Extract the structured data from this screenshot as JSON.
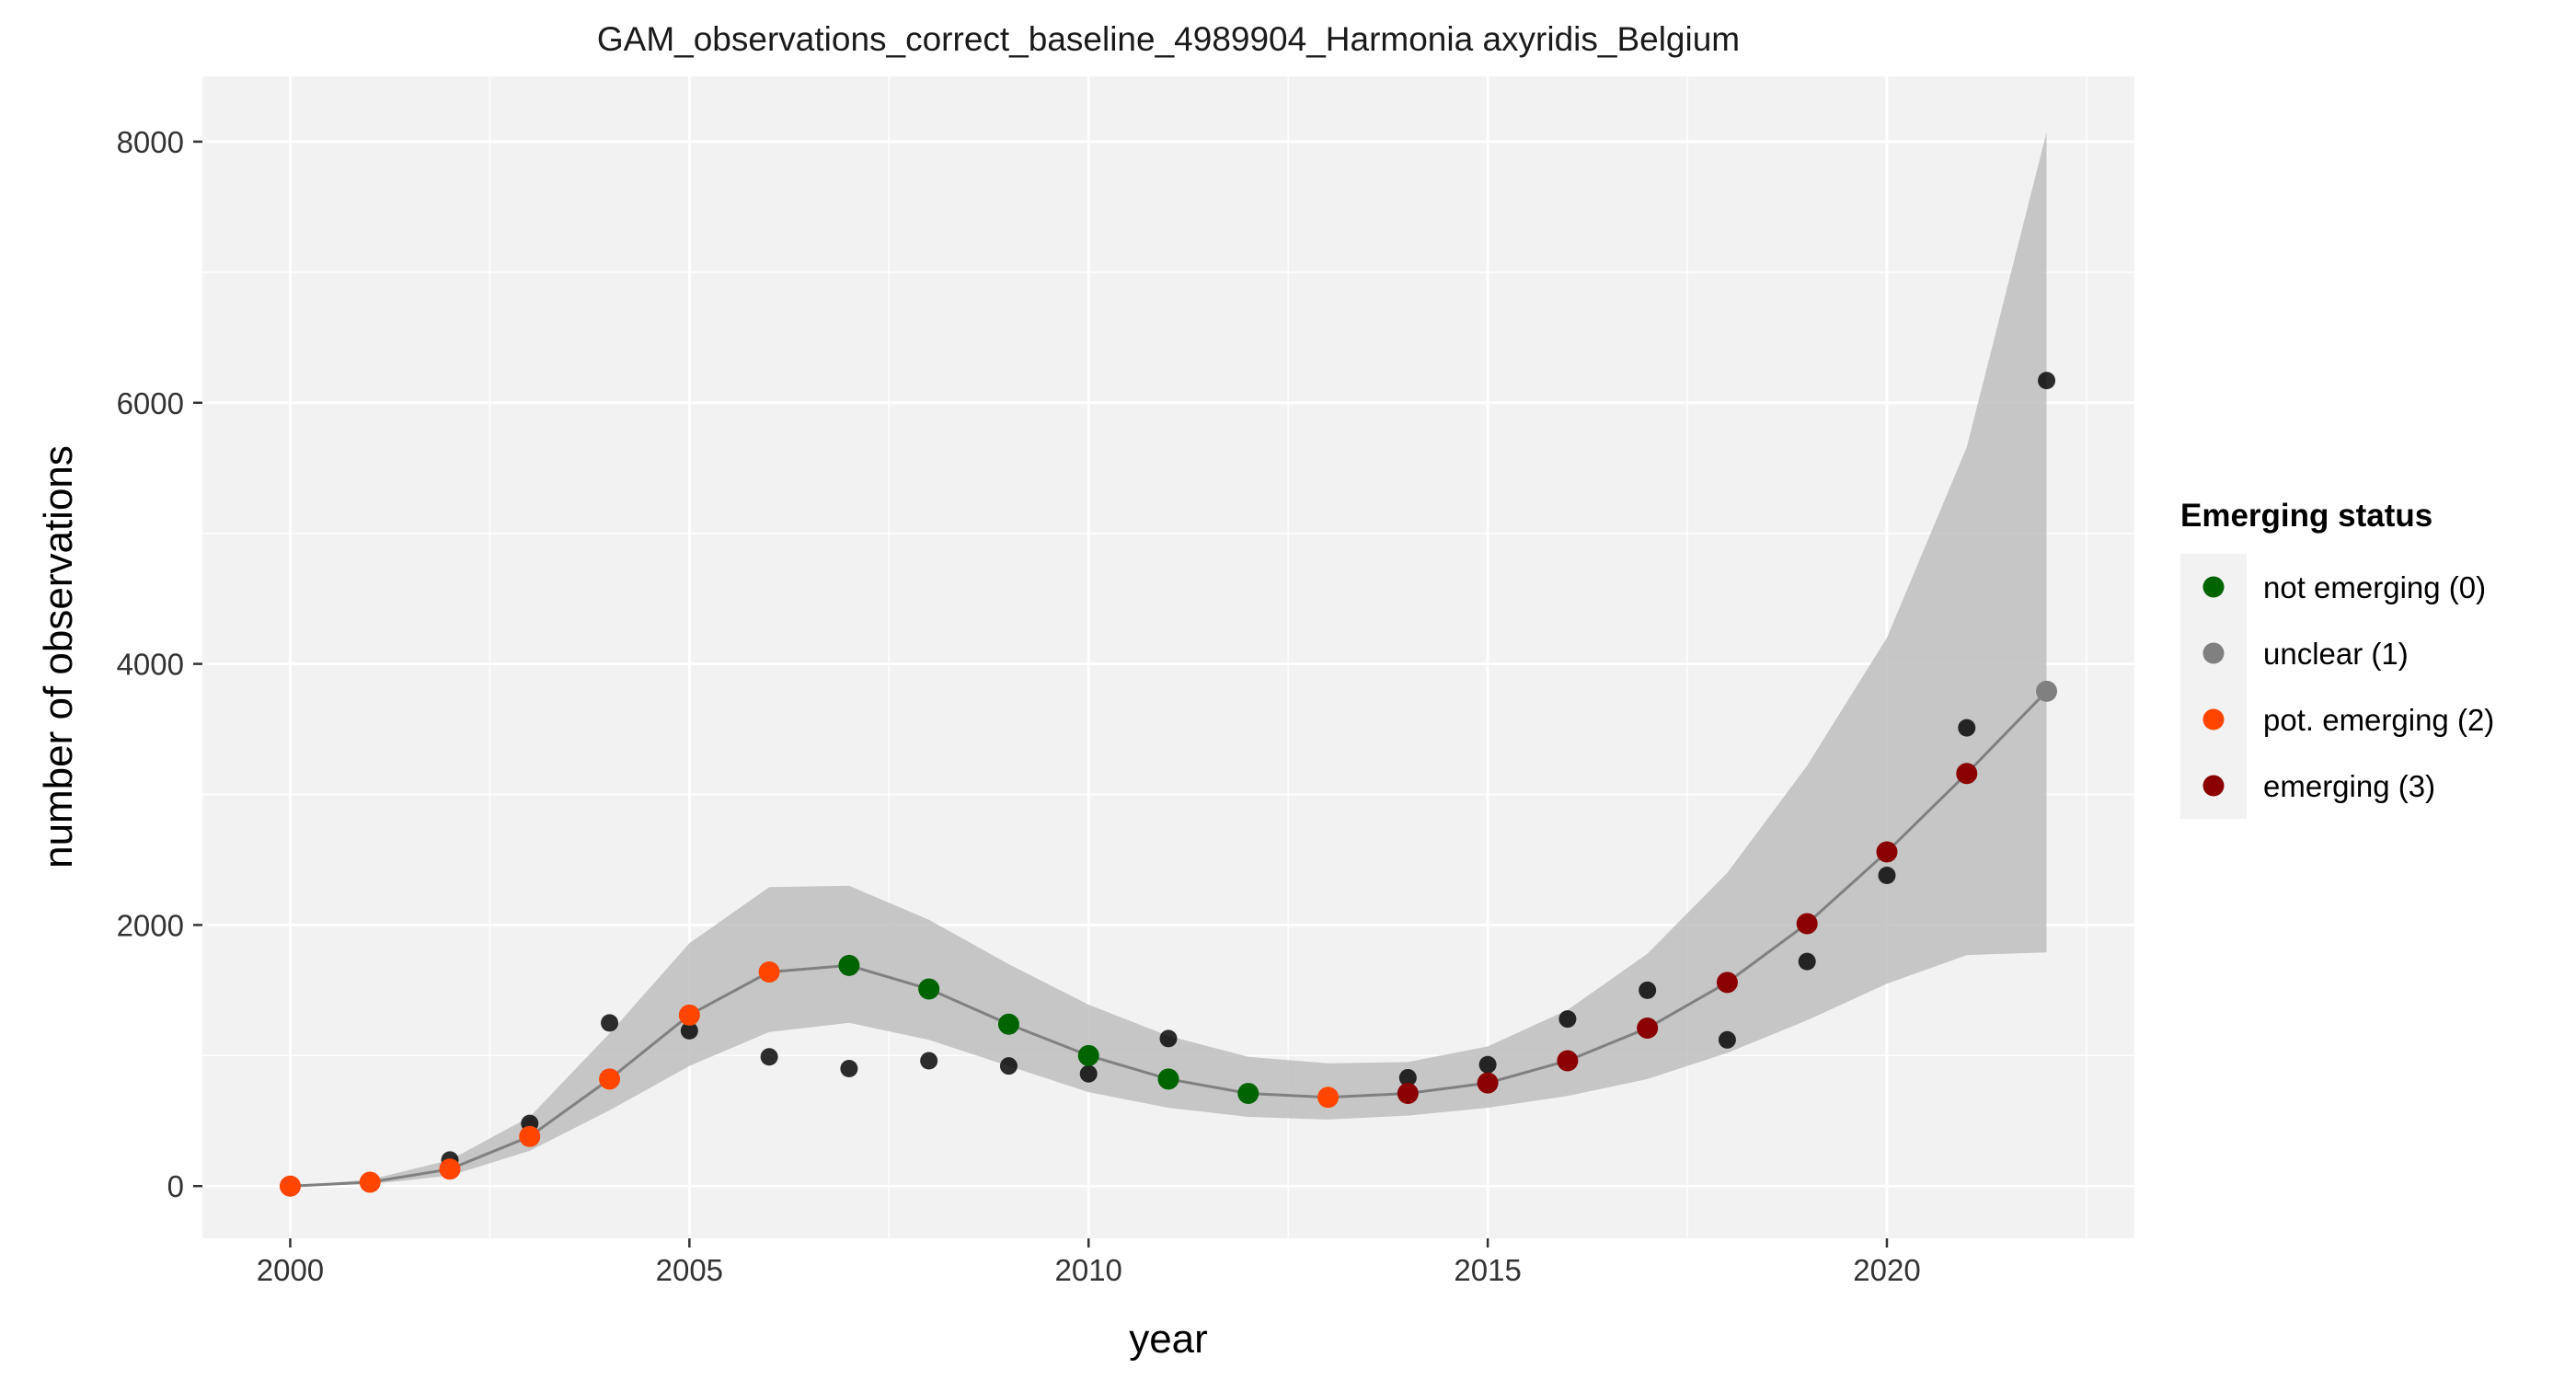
{
  "chart_data": {
    "type": "scatter",
    "title": "GAM_observations_correct_baseline_4989904_Harmonia axyridis_Belgium",
    "xlabel": "year",
    "ylabel": "number of observations",
    "xlim": [
      1998.9,
      2023.1
    ],
    "ylim": [
      -400,
      8500
    ],
    "x_ticks": [
      2000,
      2005,
      2010,
      2015,
      2020
    ],
    "x_tick_labels": [
      "2000",
      "2005",
      "2010",
      "2015",
      "2020"
    ],
    "y_ticks": [
      0,
      2000,
      4000,
      6000,
      8000
    ],
    "y_tick_labels": [
      "0",
      "2000",
      "4000",
      "6000",
      "8000"
    ],
    "grid": true,
    "legend_position": "right",
    "legend": {
      "title": "Emerging status",
      "entries": [
        {
          "label": "not emerging (0)",
          "color": "#006400"
        },
        {
          "label": "unclear (1)",
          "color": "#808080"
        },
        {
          "label": "pot. emerging (2)",
          "color": "#FF4500"
        },
        {
          "label": "emerging (3)",
          "color": "#8B0000"
        }
      ]
    },
    "observed": {
      "color": "#000000",
      "x": [
        2000,
        2001,
        2002,
        2003,
        2004,
        2005,
        2006,
        2007,
        2008,
        2009,
        2010,
        2011,
        2012,
        2013,
        2014,
        2015,
        2016,
        2017,
        2018,
        2019,
        2020,
        2021,
        2022
      ],
      "y": [
        0,
        30,
        200,
        480,
        1250,
        1190,
        990,
        900,
        960,
        920,
        860,
        1130,
        720,
        680,
        830,
        930,
        1280,
        1500,
        1120,
        1720,
        2380,
        3510,
        6170
      ]
    },
    "fit": {
      "color": "#808080",
      "x": [
        2000,
        2001,
        2002,
        2003,
        2004,
        2005,
        2006,
        2007,
        2008,
        2009,
        2010,
        2011,
        2012,
        2013,
        2014,
        2015,
        2016,
        2017,
        2018,
        2019,
        2020,
        2021,
        2022
      ],
      "y": [
        0,
        30,
        130,
        380,
        820,
        1310,
        1640,
        1690,
        1510,
        1240,
        1000,
        820,
        710,
        680,
        710,
        790,
        960,
        1210,
        1560,
        2010,
        2560,
        3160,
        3790
      ],
      "status": [
        2,
        2,
        2,
        2,
        2,
        2,
        2,
        0,
        0,
        0,
        0,
        0,
        0,
        2,
        3,
        3,
        3,
        3,
        3,
        3,
        3,
        3,
        1
      ]
    },
    "confidence_band": {
      "color": "#BEBEBE",
      "x": [
        2000,
        2001,
        2002,
        2003,
        2004,
        2005,
        2006,
        2007,
        2008,
        2009,
        2010,
        2011,
        2012,
        2013,
        2014,
        2015,
        2016,
        2017,
        2018,
        2019,
        2020,
        2021,
        2022
      ],
      "lower": [
        0,
        15,
        80,
        270,
        580,
        920,
        1180,
        1250,
        1120,
        920,
        720,
        600,
        530,
        510,
        540,
        600,
        690,
        820,
        1020,
        1270,
        1550,
        1770,
        1790
      ],
      "upper": [
        0,
        50,
        200,
        530,
        1170,
        1860,
        2290,
        2300,
        2040,
        1700,
        1390,
        1150,
        990,
        940,
        950,
        1070,
        1350,
        1780,
        2400,
        3220,
        4200,
        5660,
        8070
      ]
    }
  }
}
